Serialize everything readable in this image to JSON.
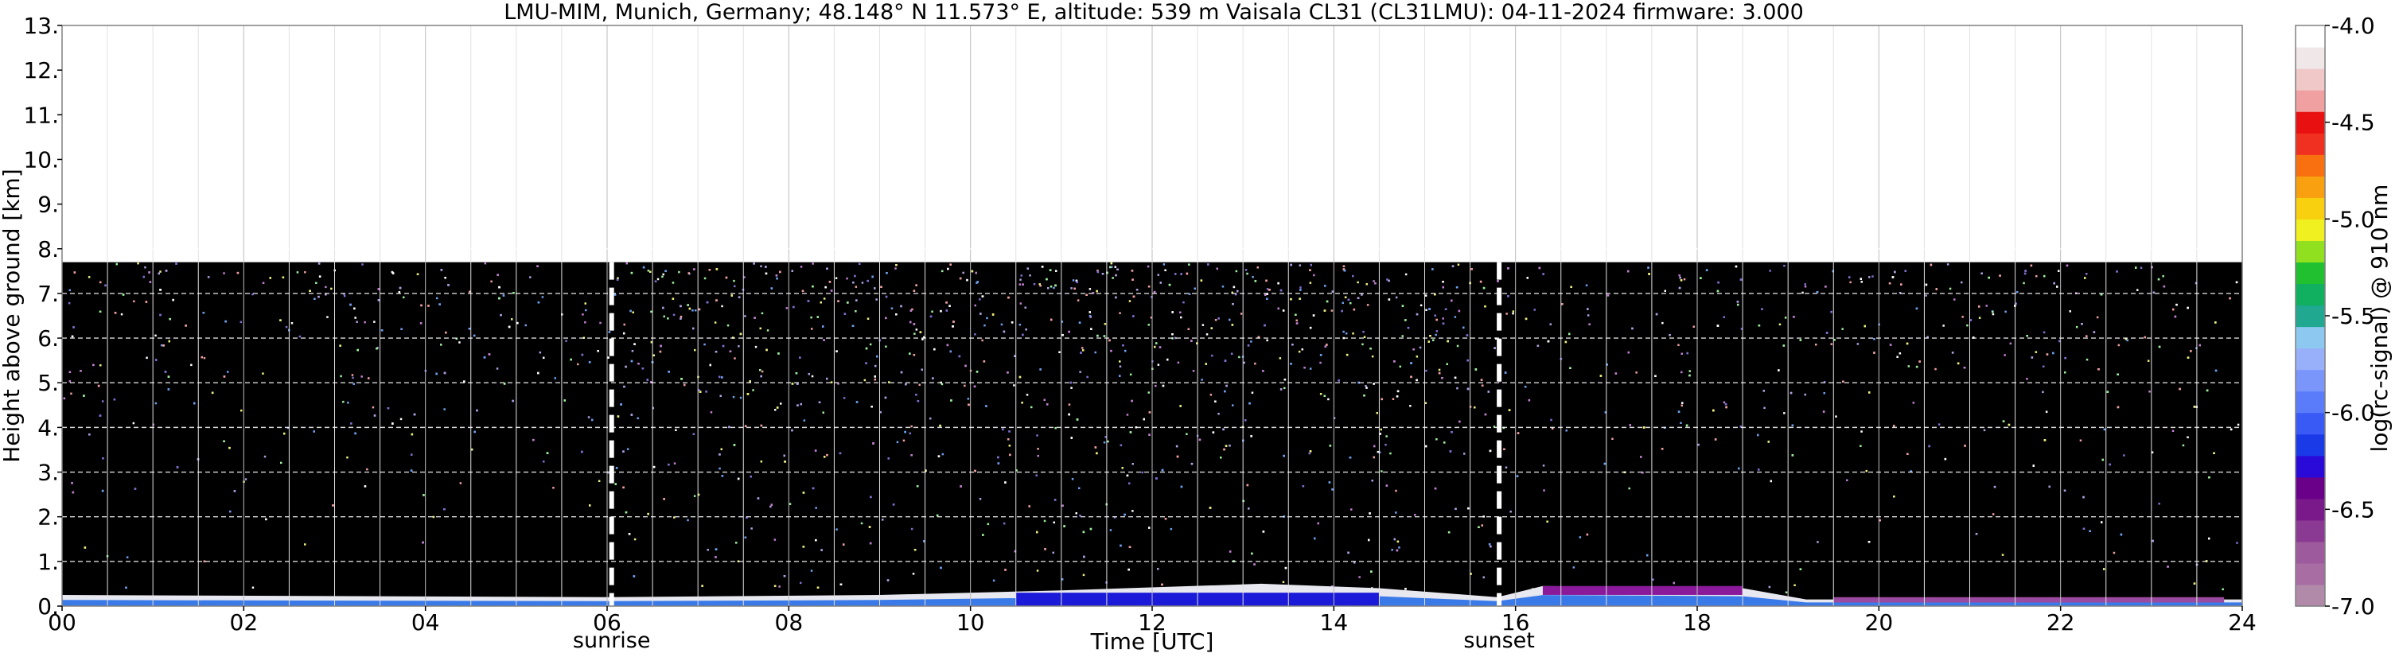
{
  "chart_data": {
    "type": "heatmap",
    "title": "LMU-MIM, Munich, Germany; 48.148° N 11.573° E, altitude: 539 m    Vaisala CL31 (CL31LMU): 04-11-2024    firmware: 3.000",
    "xlabel": "Time [UTC]",
    "ylabel": "Height above ground [km]",
    "xlim": [
      0,
      24
    ],
    "ylim": [
      0,
      13
    ],
    "x_ticks": [
      "00",
      "02",
      "04",
      "06",
      "08",
      "10",
      "12",
      "14",
      "16",
      "18",
      "20",
      "22",
      "24"
    ],
    "y_ticks": [
      "0.",
      "1.",
      "2.",
      "3.",
      "4.",
      "5.",
      "6.",
      "7.",
      "8.",
      "9.",
      "10.",
      "11.",
      "12.",
      "13."
    ],
    "grid": true,
    "markers": [
      {
        "label": "sunrise",
        "x": 6.05
      },
      {
        "label": "sunset",
        "x": 15.82
      }
    ],
    "signal_top_km": 7.7,
    "boundary_layer": [
      {
        "x": 0,
        "top_km": 0.25
      },
      {
        "x": 6,
        "top_km": 0.2
      },
      {
        "x": 9,
        "top_km": 0.25
      },
      {
        "x": 11,
        "top_km": 0.35
      },
      {
        "x": 13.2,
        "top_km": 0.5
      },
      {
        "x": 14.5,
        "top_km": 0.4
      },
      {
        "x": 15.8,
        "top_km": 0.2
      },
      {
        "x": 16.3,
        "top_km": 0.45
      },
      {
        "x": 18.5,
        "top_km": 0.4
      },
      {
        "x": 19.2,
        "top_km": 0.15
      },
      {
        "x": 24,
        "top_km": 0.15
      }
    ],
    "colorbar": {
      "label": "log(rc-signal) @ 910 nm",
      "range": [
        -7.0,
        -4.0
      ],
      "ticks": [
        "-4.0",
        "-4.5",
        "-5.0",
        "-5.5",
        "-6.0",
        "-6.5",
        "-7.0"
      ],
      "colors": [
        "#b08aa8",
        "#a86ea3",
        "#9d5a9c",
        "#8a3a92",
        "#7a1a8a",
        "#6a008a",
        "#2a0ad8",
        "#1a3ae8",
        "#3a5af5",
        "#5a7cfa",
        "#7a96fa",
        "#98b0fa",
        "#8cc8f0",
        "#20a890",
        "#10b060",
        "#20c030",
        "#90e020",
        "#f0f020",
        "#f8d010",
        "#f8a010",
        "#f87010",
        "#f03020",
        "#e81010",
        "#f0a0a0",
        "#f0c8c8",
        "#f0e8e8",
        "#ffffff"
      ]
    }
  }
}
